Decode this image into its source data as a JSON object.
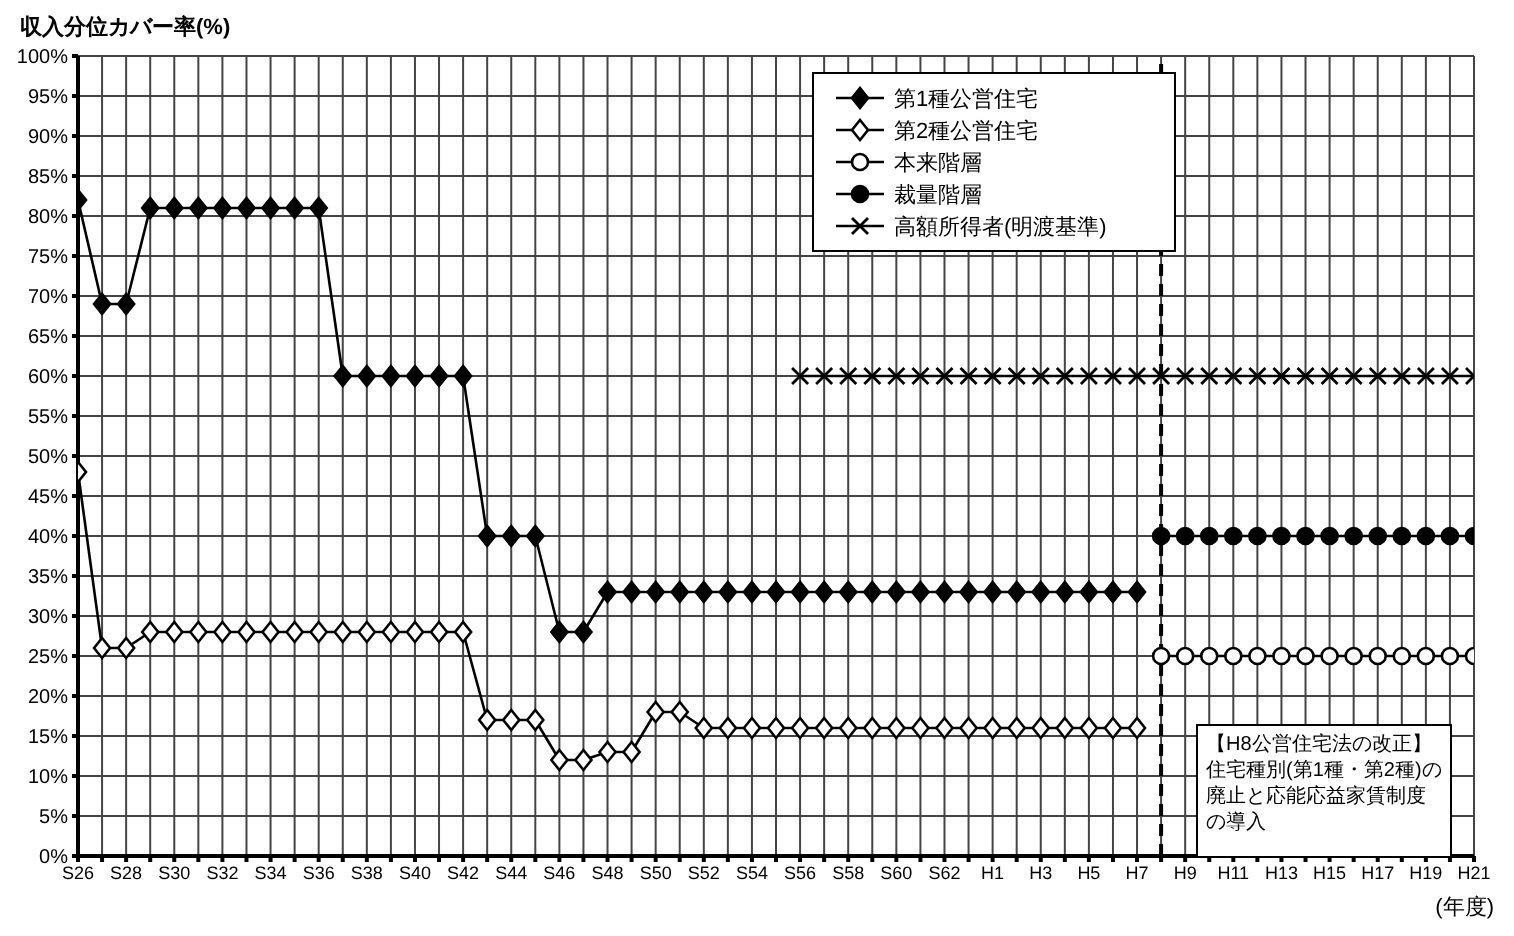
{
  "chart_data": {
    "type": "line",
    "ylabel": "収入分位カバー率(%)",
    "xlabel": "(年度)",
    "x": [
      "1951",
      "1952",
      "1953",
      "1954",
      "1955",
      "1956",
      "1957",
      "1958",
      "1959",
      "1960",
      "1961",
      "1962",
      "1963",
      "1964",
      "1965",
      "1966",
      "1967",
      "1968",
      "1969",
      "1970",
      "1971",
      "1972",
      "1973",
      "1974",
      "1975",
      "1976",
      "1977",
      "1978",
      "1979",
      "1980",
      "1981",
      "1982",
      "1983",
      "1984",
      "1985",
      "1986",
      "1987",
      "1988",
      "1989",
      "1990",
      "1991",
      "1992",
      "1993",
      "1994",
      "1995",
      "1996",
      "1997",
      "1998",
      "1999",
      "2000",
      "2001",
      "2002",
      "2003",
      "2004",
      "2005",
      "2006",
      "2007",
      "2008",
      "2009"
    ],
    "series": [
      {
        "name": "第1種公営住宅",
        "color": "#000000",
        "marker": "diamond",
        "values": [
          82,
          69,
          69,
          81,
          81,
          81,
          81,
          81,
          81,
          81,
          81,
          60,
          60,
          60,
          60,
          60,
          60,
          40,
          40,
          40,
          28,
          28,
          33,
          33,
          33,
          33,
          33,
          33,
          33,
          33,
          33,
          33,
          33,
          33,
          33,
          33,
          33,
          33,
          33,
          33,
          33,
          33,
          33,
          33,
          33,
          null,
          null,
          null,
          null,
          null,
          null,
          null,
          null,
          null,
          null,
          null,
          null,
          null,
          null
        ]
      },
      {
        "name": "第2種公営住宅",
        "color": "#000000",
        "marker": "diamond",
        "colors": [
          "#ffffff",
          "#ffffff",
          "#ffffff",
          "#ffffff",
          "#ffffff",
          "#ffffff",
          "#ffffff",
          "#ffffff",
          "#ffffff",
          "#ffffff",
          "#ffffff",
          "#ffffff",
          "#ffffff",
          "#ffffff",
          "#ffffff",
          "#ffffff",
          "#ffffff",
          "#ffffff",
          "#ffffff",
          "#ffffff",
          "#ffffff",
          "#ffffff",
          "#ffffff",
          "#ffffff",
          "#ffffff",
          "#ffffff",
          "#ffffff",
          "#ffffff",
          "#ffffff",
          "#ffffff",
          "#ffffff",
          "#ffffff",
          "#ffffff",
          "#ffffff",
          "#ffffff",
          "#ffffff",
          "#ffffff",
          "#ffffff",
          "#ffffff",
          "#ffffff",
          "#ffffff",
          "#ffffff",
          "#ffffff",
          "#ffffff",
          "#ffffff",
          null,
          null,
          null,
          null,
          null,
          null,
          null,
          null,
          null,
          null,
          null,
          null,
          null,
          null
        ],
        "values": [
          48,
          26,
          26,
          28,
          28,
          28,
          28,
          28,
          28,
          28,
          28,
          28,
          28,
          28,
          28,
          28,
          28,
          17,
          17,
          17,
          12,
          12,
          13,
          13,
          18,
          18,
          16,
          16,
          16,
          16,
          16,
          16,
          16,
          16,
          16,
          16,
          16,
          16,
          16,
          16,
          16,
          16,
          16,
          16,
          16,
          null,
          null,
          null,
          null,
          null,
          null,
          null,
          null,
          null,
          null,
          null,
          null,
          null,
          null
        ]
      },
      {
        "name": "本来階層",
        "color": "#000000",
        "marker": "circle",
        "colors": [
          null,
          null,
          null,
          null,
          null,
          null,
          null,
          null,
          null,
          null,
          null,
          null,
          null,
          null,
          null,
          null,
          null,
          null,
          null,
          null,
          null,
          null,
          null,
          null,
          null,
          null,
          null,
          null,
          null,
          null,
          null,
          null,
          null,
          null,
          null,
          null,
          null,
          null,
          null,
          null,
          null,
          null,
          null,
          null,
          null,
          "#ffffff",
          "#ffffff",
          "#ffffff",
          "#ffffff",
          "#ffffff",
          "#ffffff",
          "#ffffff",
          "#ffffff",
          "#ffffff",
          "#ffffff",
          "#ffffff",
          "#ffffff",
          "#ffffff",
          "#ffffff"
        ],
        "values": [
          null,
          null,
          null,
          null,
          null,
          null,
          null,
          null,
          null,
          null,
          null,
          null,
          null,
          null,
          null,
          null,
          null,
          null,
          null,
          null,
          null,
          null,
          null,
          null,
          null,
          null,
          null,
          null,
          null,
          null,
          null,
          null,
          null,
          null,
          null,
          null,
          null,
          null,
          null,
          null,
          null,
          null,
          null,
          null,
          null,
          25,
          25,
          25,
          25,
          25,
          25,
          25,
          25,
          25,
          25,
          25,
          25,
          25,
          25
        ]
      },
      {
        "name": "裁量階層",
        "color": "#000000",
        "marker": "circle",
        "values": [
          null,
          null,
          null,
          null,
          null,
          null,
          null,
          null,
          null,
          null,
          null,
          null,
          null,
          null,
          null,
          null,
          null,
          null,
          null,
          null,
          null,
          null,
          null,
          null,
          null,
          null,
          null,
          null,
          null,
          null,
          null,
          null,
          null,
          null,
          null,
          null,
          null,
          null,
          null,
          null,
          null,
          null,
          null,
          null,
          null,
          40,
          40,
          40,
          40,
          40,
          40,
          40,
          40,
          40,
          40,
          40,
          40,
          40,
          40
        ]
      },
      {
        "name": "高額所得者(明渡基準)",
        "color": "#000000",
        "marker": "cross",
        "values": [
          null,
          null,
          null,
          null,
          null,
          null,
          null,
          null,
          null,
          null,
          null,
          null,
          null,
          null,
          null,
          null,
          null,
          null,
          null,
          null,
          null,
          null,
          null,
          null,
          null,
          null,
          null,
          null,
          null,
          null,
          60,
          60,
          60,
          60,
          60,
          60,
          60,
          60,
          60,
          60,
          60,
          60,
          60,
          60,
          60,
          60,
          60,
          60,
          60,
          60,
          60,
          60,
          60,
          60,
          60,
          60,
          60,
          60,
          60
        ]
      }
    ],
    "xlim": [
      "1951",
      "2009"
    ],
    "xticks": [
      {
        "value": "1951",
        "label": "S26"
      },
      {
        "value": "1952",
        "label": null
      },
      {
        "value": "1953",
        "label": "S28"
      },
      {
        "value": "1954",
        "label": null
      },
      {
        "value": "1955",
        "label": "S30"
      },
      {
        "value": "1956",
        "label": null
      },
      {
        "value": "1957",
        "label": "S32"
      },
      {
        "value": "1958",
        "label": null
      },
      {
        "value": "1959",
        "label": "S34"
      },
      {
        "value": "1960",
        "label": null
      },
      {
        "value": "1961",
        "label": "S36"
      },
      {
        "value": "1962",
        "label": null
      },
      {
        "value": "1963",
        "label": "S38"
      },
      {
        "value": "1964",
        "label": null
      },
      {
        "value": "1965",
        "label": "S40"
      },
      {
        "value": "1966",
        "label": null
      },
      {
        "value": "1967",
        "label": "S42"
      },
      {
        "value": "1968",
        "label": null
      },
      {
        "value": "1969",
        "label": "S44"
      },
      {
        "value": "1970",
        "label": null
      },
      {
        "value": "1971",
        "label": "S46"
      },
      {
        "value": "1972",
        "label": null
      },
      {
        "value": "1973",
        "label": "S48"
      },
      {
        "value": "1974",
        "label": null
      },
      {
        "value": "1975",
        "label": "S50"
      },
      {
        "value": "1976",
        "label": null
      },
      {
        "value": "1977",
        "label": "S52"
      },
      {
        "value": "1978",
        "label": null
      },
      {
        "value": "1979",
        "label": "S54"
      },
      {
        "value": "1980",
        "label": null
      },
      {
        "value": "1981",
        "label": "S56"
      },
      {
        "value": "1982",
        "label": null
      },
      {
        "value": "1983",
        "label": "S58"
      },
      {
        "value": "1984",
        "label": null
      },
      {
        "value": "1985",
        "label": "S60"
      },
      {
        "value": "1986",
        "label": null
      },
      {
        "value": "1987",
        "label": "S62"
      },
      {
        "value": "1988",
        "label": null
      },
      {
        "value": "1989",
        "label": "H1"
      },
      {
        "value": "1990",
        "label": null
      },
      {
        "value": "1991",
        "label": "H3"
      },
      {
        "value": "1992",
        "label": null
      },
      {
        "value": "1993",
        "label": "H5"
      },
      {
        "value": "1994",
        "label": null
      },
      {
        "value": "1995",
        "label": "H7"
      },
      {
        "value": "1996",
        "label": null
      },
      {
        "value": "1997",
        "label": "H9"
      },
      {
        "value": "1998",
        "label": null
      },
      {
        "value": "1999",
        "label": "H11"
      },
      {
        "value": "2000",
        "label": null
      },
      {
        "value": "2001",
        "label": "H13"
      },
      {
        "value": "2002",
        "label": null
      },
      {
        "value": "2003",
        "label": "H15"
      },
      {
        "value": "2004",
        "label": null
      },
      {
        "value": "2005",
        "label": "H17"
      },
      {
        "value": "2006",
        "label": null
      },
      {
        "value": "2007",
        "label": "H19"
      },
      {
        "value": "2008",
        "label": null
      },
      {
        "value": "2009",
        "label": "H21"
      }
    ],
    "ylim": [
      0,
      100
    ],
    "yticks": [
      {
        "value": 0,
        "label": "0%"
      },
      {
        "value": 5,
        "label": "5%"
      },
      {
        "value": 10,
        "label": "10%"
      },
      {
        "value": 15,
        "label": "15%"
      },
      {
        "value": 20,
        "label": "20%"
      },
      {
        "value": 25,
        "label": "25%"
      },
      {
        "value": 30,
        "label": "30%"
      },
      {
        "value": 35,
        "label": "35%"
      },
      {
        "value": 40,
        "label": "40%"
      },
      {
        "value": 45,
        "label": "45%"
      },
      {
        "value": 50,
        "label": "50%"
      },
      {
        "value": 55,
        "label": "55%"
      },
      {
        "value": 60,
        "label": "60%"
      },
      {
        "value": 65,
        "label": "65%"
      },
      {
        "value": 70,
        "label": "70%"
      },
      {
        "value": 75,
        "label": "75%"
      },
      {
        "value": 80,
        "label": "80%"
      },
      {
        "value": 85,
        "label": "85%"
      },
      {
        "value": 90,
        "label": "90%"
      },
      {
        "value": 95,
        "label": "95%"
      },
      {
        "value": 100,
        "label": "100%"
      }
    ],
    "ref_lines": [
      {
        "axis": "x",
        "value": "1996",
        "color": "#000000",
        "line_style": "dashed"
      }
    ],
    "annotations": [
      "【H8公営住宅法の改正】住宅種別(第1種・第2種)の廃止と応能応益家賃制度の導入"
    ],
    "grid": true,
    "legend": "top right",
    "line_style": "solid"
  }
}
